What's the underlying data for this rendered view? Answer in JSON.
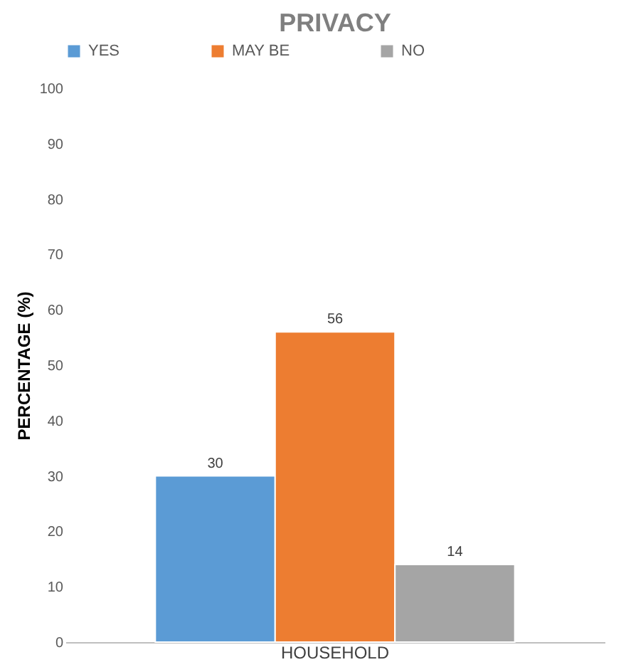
{
  "chart_data": {
    "type": "bar",
    "title": "PRIVACY",
    "ylabel": "PERCENTAGE (%)",
    "categories": [
      "HOUSEHOLD"
    ],
    "series": [
      {
        "name": "YES",
        "color": "#5b9bd5",
        "values": [
          30
        ]
      },
      {
        "name": "MAY BE",
        "color": "#ed7d31",
        "values": [
          56
        ]
      },
      {
        "name": "NO",
        "color": "#a5a5a5",
        "values": [
          14
        ]
      }
    ],
    "ylim": [
      0,
      100
    ],
    "yticks": [
      0,
      10,
      20,
      30,
      40,
      50,
      60,
      70,
      80,
      90,
      100
    ],
    "data_labels": true,
    "grid": false,
    "legend": "top"
  }
}
